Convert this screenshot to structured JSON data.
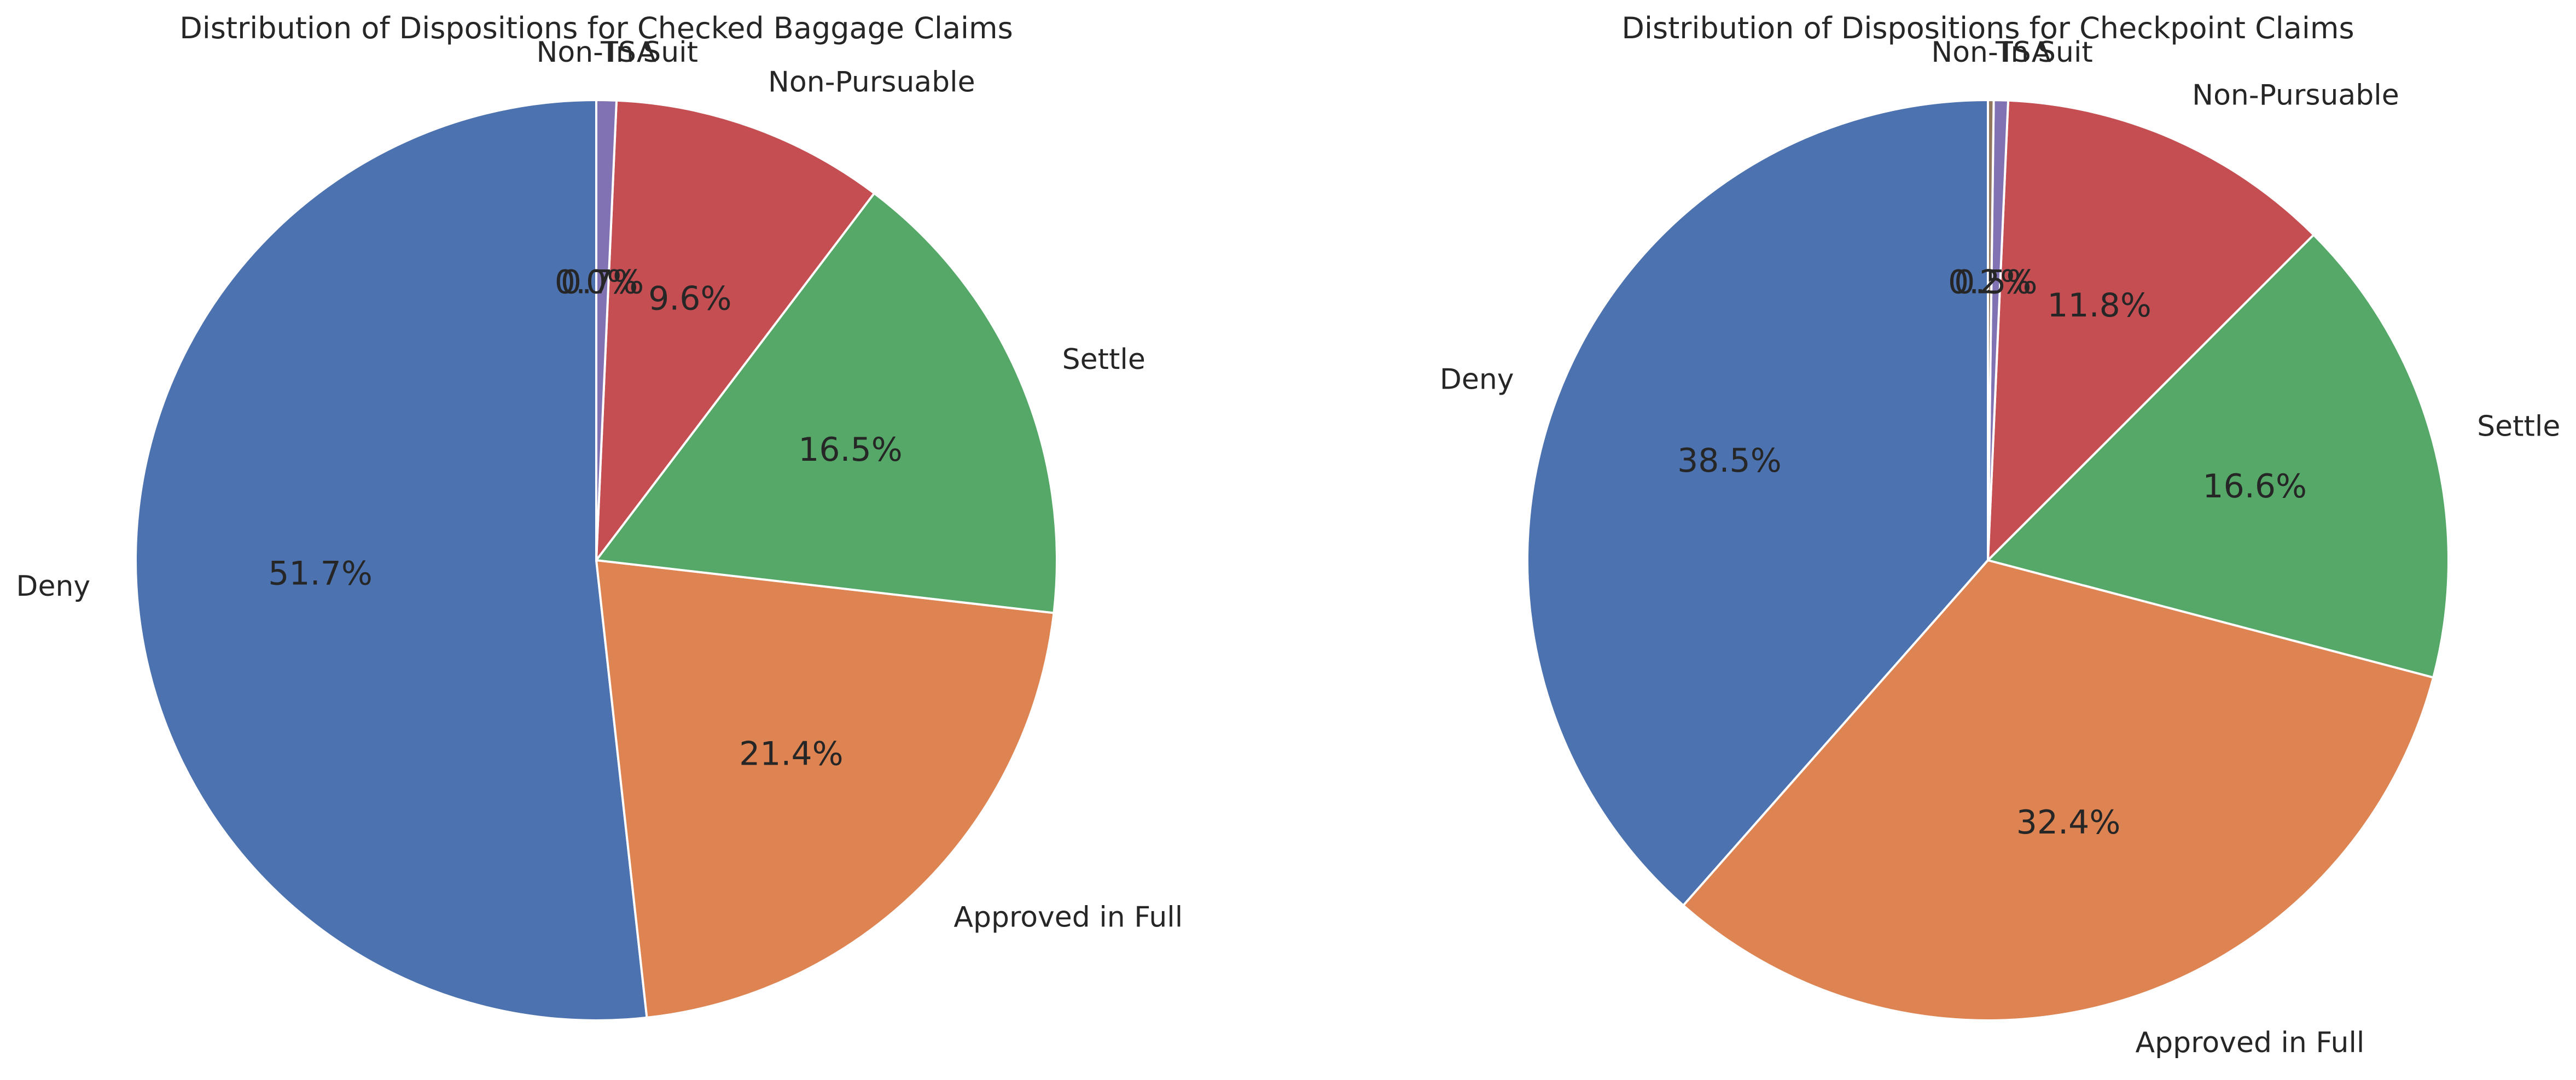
{
  "chart_data": [
    {
      "type": "pie",
      "title": "Distribution of Dispositions for Checked Baggage Claims",
      "start_angle_deg": 90,
      "direction": "counterclockwise",
      "slices": [
        {
          "label": "Deny",
          "value": 51.7,
          "pct_label": "51.7%",
          "color": "#4c72b0"
        },
        {
          "label": "Approved in Full",
          "value": 21.4,
          "pct_label": "21.4%",
          "color": "#dd8452"
        },
        {
          "label": "Settle",
          "value": 16.5,
          "pct_label": "16.5%",
          "color": "#55a868"
        },
        {
          "label": "Non-Pursuable",
          "value": 9.6,
          "pct_label": "9.6%",
          "color": "#c44e52"
        },
        {
          "label": "In Suit",
          "value": 0.7,
          "pct_label": "0.7%",
          "color": "#8172b3"
        },
        {
          "label": "Non-TSA",
          "value": 0.0,
          "pct_label": "0.0%",
          "color": "#937860"
        }
      ]
    },
    {
      "type": "pie",
      "title": "Distribution of Dispositions for Checkpoint Claims",
      "start_angle_deg": 90,
      "direction": "counterclockwise",
      "slices": [
        {
          "label": "Deny",
          "value": 38.5,
          "pct_label": "38.5%",
          "color": "#4c72b0"
        },
        {
          "label": "Approved in Full",
          "value": 32.4,
          "pct_label": "32.4%",
          "color": "#dd8452"
        },
        {
          "label": "Settle",
          "value": 16.6,
          "pct_label": "16.6%",
          "color": "#55a868"
        },
        {
          "label": "Non-Pursuable",
          "value": 11.8,
          "pct_label": "11.8%",
          "color": "#c44e52"
        },
        {
          "label": "In Suit",
          "value": 0.5,
          "pct_label": "0.5%",
          "color": "#8172b3"
        },
        {
          "label": "Non-TSA",
          "value": 0.2,
          "pct_label": "0.2%",
          "color": "#937860"
        }
      ]
    }
  ]
}
